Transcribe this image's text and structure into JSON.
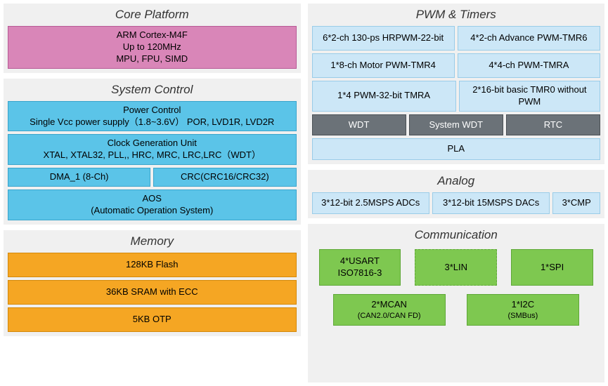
{
  "colors": {
    "pink": {
      "bg": "#d986b8",
      "border": "#b85a96"
    },
    "cyan": {
      "bg": "#5bc4e8",
      "border": "#3aa5cc"
    },
    "lightblue": {
      "bg": "#cce7f7",
      "border": "#99cce8"
    },
    "darkgray": {
      "bg": "#6b7278",
      "border": "#4a5055"
    },
    "orange": {
      "bg": "#f5a623",
      "border": "#d4890a"
    },
    "green": {
      "bg": "#7ec850",
      "border": "#5fa838"
    },
    "section_bg": "#f0f0f0"
  },
  "core": {
    "title": "Core Platform",
    "lines": [
      "ARM Cortex-M4F",
      "Up to 120MHz",
      "MPU, FPU, SIMD"
    ]
  },
  "sys": {
    "title": "System Control",
    "power": {
      "l1": "Power Control",
      "l2": "Single Vcc power supply（1.8~3.6V）  POR, LVD1R, LVD2R"
    },
    "clock": {
      "l1": "Clock Generation Unit",
      "l2": "XTAL, XTAL32, PLL,, HRC, MRC, LRC,LRC（WDT）"
    },
    "dma": "DMA_1 (8-Ch)",
    "crc": "CRC(CRC16/CRC32)",
    "aos": {
      "l1": "AOS",
      "l2": "(Automatic Operation System)"
    }
  },
  "mem": {
    "title": "Memory",
    "b1": "128KB Flash",
    "b2": "36KB SRAM with ECC",
    "b3": "5KB OTP"
  },
  "pwm": {
    "title": "PWM & Timers",
    "b1": "6*2-ch 130-ps HRPWM-22-bit",
    "b2": "4*2-ch Advance PWM-TMR6",
    "b3": "1*8-ch Motor PWM-TMR4",
    "b4": "4*4-ch PWM-TMRA",
    "b5": "1*4 PWM-32-bit TMRA",
    "b6": "2*16-bit basic TMR0 without PWM",
    "wdt": "WDT",
    "swdt": "System WDT",
    "rtc": "RTC",
    "pla": "PLA"
  },
  "analog": {
    "title": "Analog",
    "adc": "3*12-bit  2.5MSPS ADCs",
    "dac": "3*12-bit  15MSPS DACs",
    "cmp": "3*CMP"
  },
  "comm": {
    "title": "Communication",
    "usart": {
      "l1": "4*USART",
      "l2": "ISO7816-3"
    },
    "lin": "3*LIN",
    "spi": "1*SPI",
    "mcan": {
      "l1": "2*MCAN",
      "l2": "(CAN2.0/CAN FD)"
    },
    "i2c": {
      "l1": "1*I2C",
      "l2": "(SMBus)"
    }
  }
}
